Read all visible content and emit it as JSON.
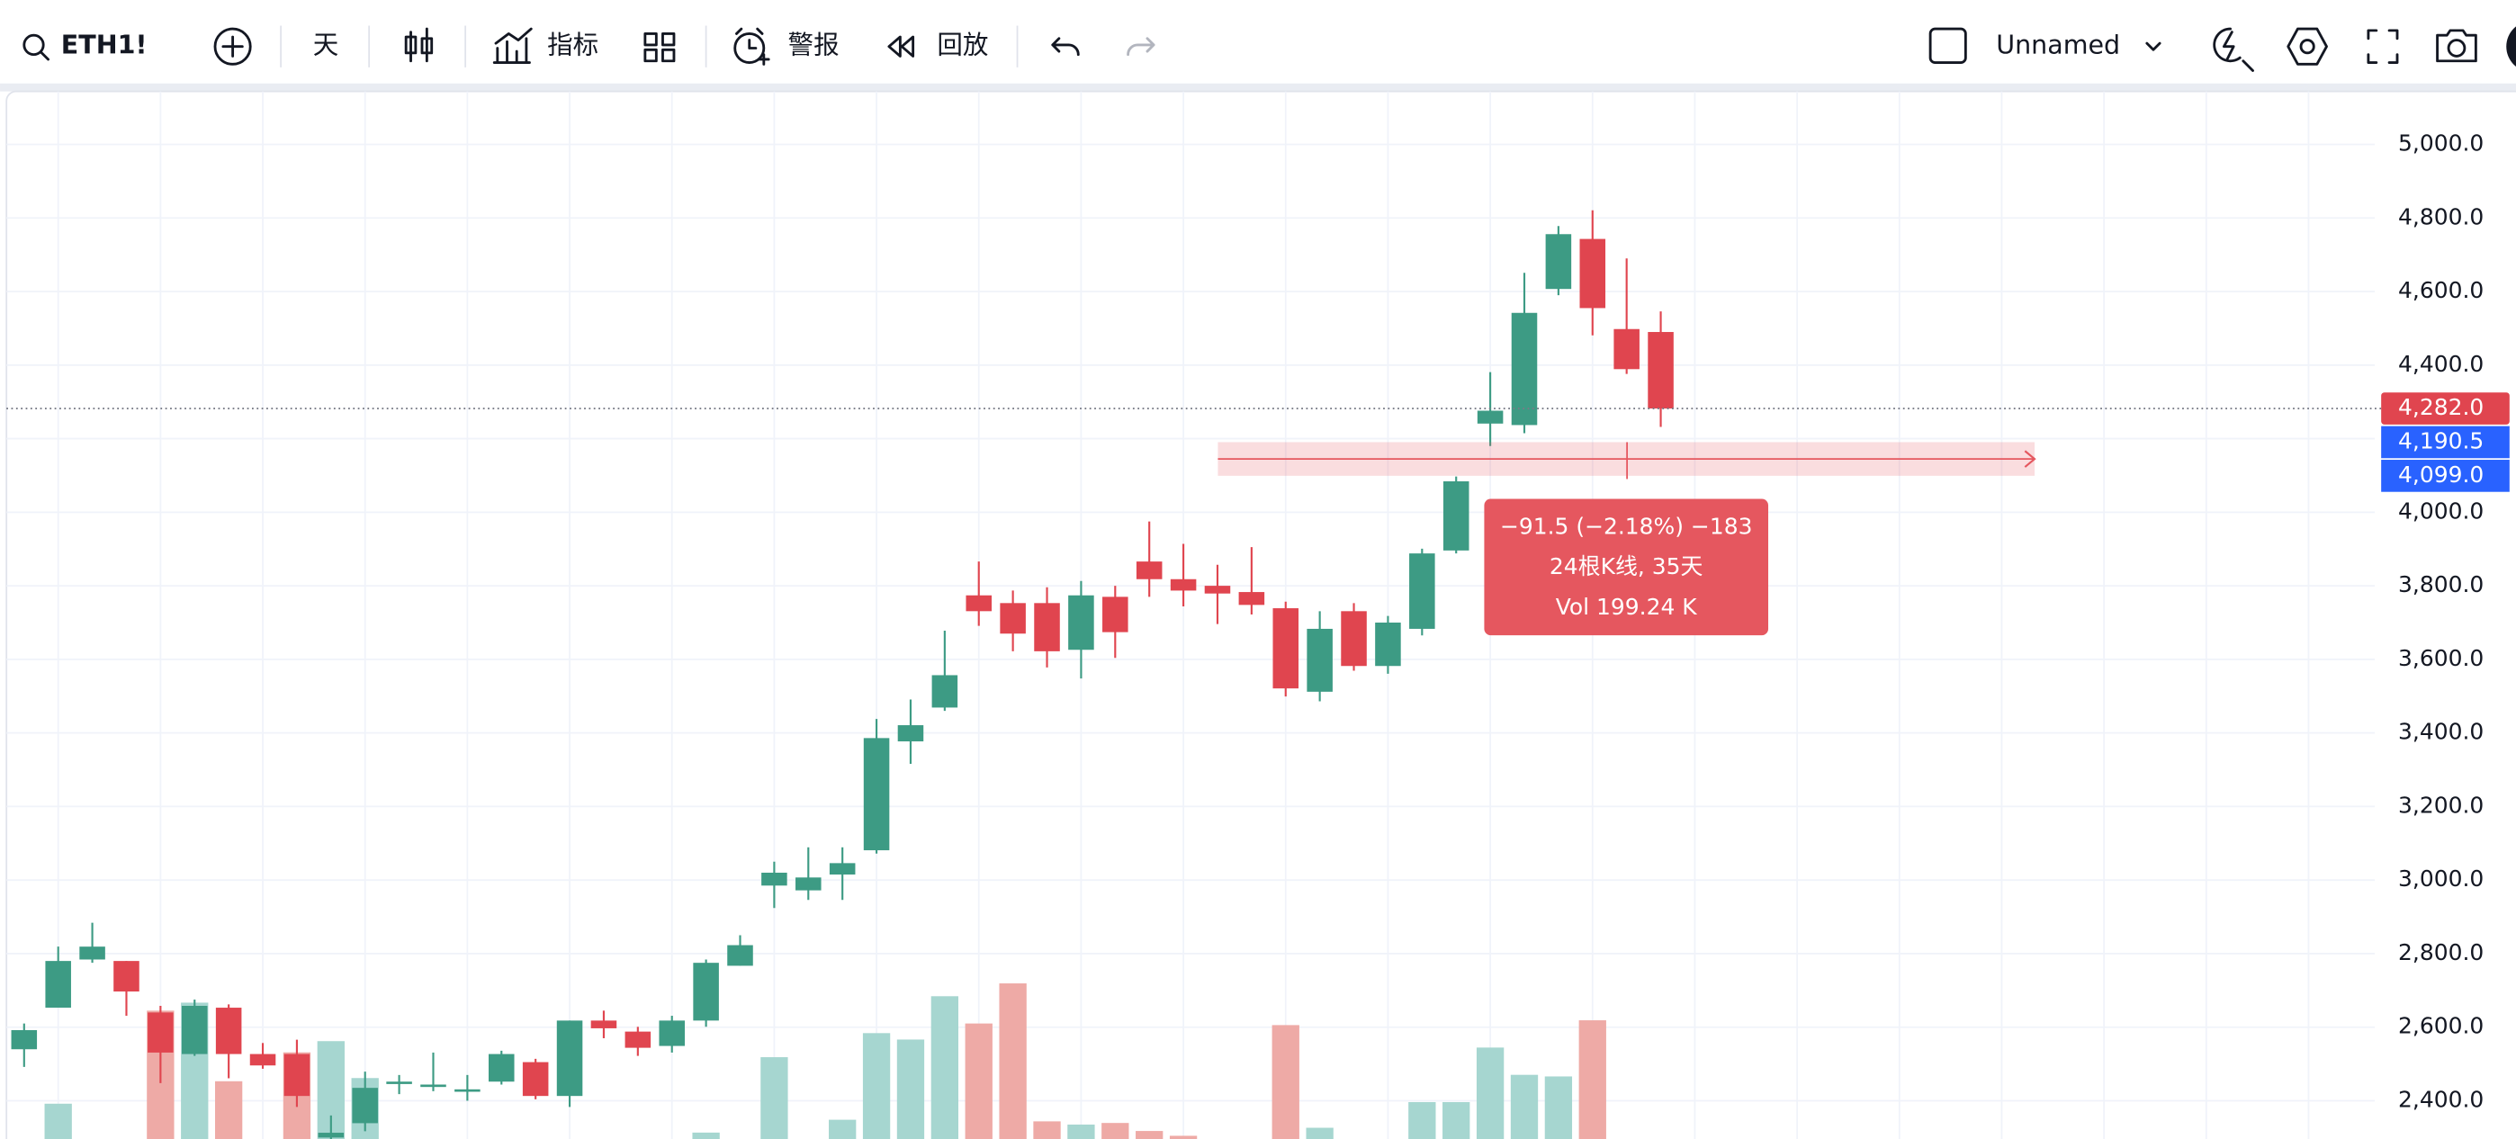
{
  "toolbar": {
    "symbol": "ETH1!",
    "interval": "天",
    "indicators": "指标",
    "alerts": "警报",
    "replay": "回放",
    "layout": "Unnamed"
  },
  "chart_data": {
    "type": "candlestick",
    "ylim": [
      2296,
      5144
    ],
    "yticks": [
      {
        "value": 2400,
        "label": "2,400.0"
      },
      {
        "value": 2600,
        "label": "2,600.0"
      },
      {
        "value": 2800,
        "label": "2,800.0"
      },
      {
        "value": 3000,
        "label": "3,000.0"
      },
      {
        "value": 3200,
        "label": "3,200.0"
      },
      {
        "value": 3400,
        "label": "3,400.0"
      },
      {
        "value": 3600,
        "label": "3,600.0"
      },
      {
        "value": 3800,
        "label": "3,800.0"
      },
      {
        "value": 4000,
        "label": "4,000.0"
      },
      {
        "value": 4200,
        "label": "4,200.0"
      },
      {
        "value": 4400,
        "label": "4,400.0"
      },
      {
        "value": 4600,
        "label": "4,600.0"
      },
      {
        "value": 4800,
        "label": "4,800.0"
      },
      {
        "value": 5000,
        "label": "5,000.0"
      }
    ],
    "grid": true,
    "up_color": "#3d9b84",
    "down_color": "#e0454f",
    "volume_up_color": "#a6d6d0",
    "volume_down_color": "#eeaaa6",
    "open": [
      2540,
      2653,
      2784,
      2780,
      2640,
      2527,
      2653,
      2527,
      2527,
      2300,
      2339,
      2448,
      2440,
      2426,
      2452,
      2505,
      2413,
      2618,
      2588,
      2549,
      2618,
      2767,
      2985,
      2972,
      3015,
      3081,
      3377,
      3469,
      3774,
      3753,
      3753,
      3626,
      3770,
      3866,
      3818,
      3800,
      3783,
      3739,
      3512,
      3731,
      3582,
      3683,
      3896,
      4241,
      4237,
      4607,
      4743,
      4498,
      4490
    ],
    "high": [
      2610,
      2819,
      2884,
      2780,
      2658,
      2675,
      2662,
      2557,
      2566,
      2360,
      2479,
      2470,
      2531,
      2470,
      2536,
      2514,
      2618,
      2645,
      2601,
      2631,
      2784,
      2850,
      3050,
      3089,
      3089,
      3438,
      3491,
      3678,
      3866,
      3787,
      3796,
      3813,
      3800,
      3975,
      3914,
      3857,
      3905,
      3757,
      3731,
      3753,
      3718,
      3901,
      4097,
      4381,
      4651,
      4778,
      4821,
      4690,
      4546
    ],
    "low": [
      2492,
      2653,
      2775,
      2631,
      2448,
      2522,
      2461,
      2487,
      2383,
      2290,
      2317,
      2418,
      2426,
      2400,
      2444,
      2404,
      2383,
      2570,
      2522,
      2531,
      2601,
      2767,
      2924,
      2946,
      2946,
      3072,
      3316,
      3460,
      3691,
      3622,
      3578,
      3548,
      3604,
      3770,
      3744,
      3696,
      3722,
      3499,
      3486,
      3569,
      3561,
      3665,
      3888,
      4180,
      4215,
      4590,
      4481,
      4376,
      4232
    ],
    "close": [
      2592,
      2780,
      2819,
      2697,
      2531,
      2658,
      2527,
      2496,
      2413,
      2313,
      2435,
      2452,
      2444,
      2431,
      2527,
      2413,
      2618,
      2597,
      2544,
      2618,
      2775,
      2823,
      3020,
      3007,
      3046,
      3386,
      3421,
      3557,
      3731,
      3670,
      3622,
      3774,
      3674,
      3818,
      3787,
      3779,
      3748,
      3521,
      3683,
      3582,
      3700,
      3888,
      4084,
      4276,
      4542,
      4756,
      4555,
      4389,
      4282
    ],
    "volume": [
      0,
      22,
      0,
      0,
      80,
      85,
      36,
      0,
      54,
      61,
      38,
      0,
      0,
      0,
      0,
      0,
      0,
      0,
      0,
      0,
      4,
      0,
      51,
      0,
      12,
      66,
      62,
      89,
      72,
      97,
      11,
      9,
      10,
      5,
      2,
      0,
      0,
      71,
      7,
      0,
      0,
      23,
      23,
      57,
      40,
      39,
      74,
      0,
      0
    ],
    "volume_lim": [
      0,
      100
    ],
    "price_tags": [
      {
        "value": 4282,
        "label": "4,282.0",
        "color": "#e0454f"
      },
      {
        "value": 4190.5,
        "label": "4,190.5",
        "color": "#2962ff"
      },
      {
        "value": 4099,
        "label": "4,099.0",
        "color": "#2962ff"
      }
    ],
    "measure": {
      "change": "−91.5 (−2.18%) −183",
      "bars": "24根K线, 35天",
      "volume": "Vol 199.24 K",
      "color": "#e5575f"
    }
  }
}
